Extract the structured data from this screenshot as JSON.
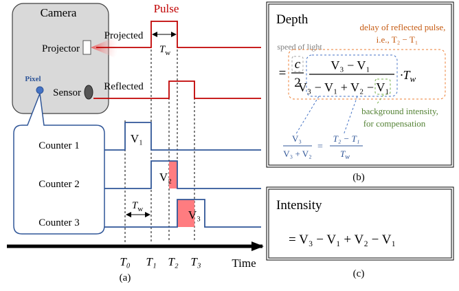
{
  "panel_a": {
    "camera": "Camera",
    "pulse": "Pulse",
    "projected": "Projected",
    "tw_top": {
      "base": "T",
      "sub": "w"
    },
    "projector": "Projector",
    "pixel": "Pixel",
    "sensor": "Sensor",
    "reflected": "Reflected",
    "counters": [
      "Counter 1",
      "Counter 2",
      "Counter 3"
    ],
    "counter_values": [
      "V₁",
      "V₂",
      "V₃"
    ],
    "tw_counter": {
      "base": "T",
      "sub": "w"
    },
    "times": [
      "T₀",
      "T₁",
      "T₂",
      "T₃"
    ],
    "time_axis": "Time",
    "caption": "(a)"
  },
  "panel_b": {
    "title": "Depth",
    "delay_note": [
      "delay of reflected pulse,",
      "i.e., T₂ − T₁"
    ],
    "speed_note": "speed of light",
    "formula": {
      "equals": "=",
      "c": "c",
      "two": "2",
      "numerator": "V₃ − V₁",
      "denominator_main": "V₃ − V₁ + V₂ −",
      "denominator_last": "V₁",
      "factor": {
        "base": "·T",
        "sub": "w"
      }
    },
    "background_note": [
      "background intensity,",
      "for compensation"
    ],
    "ratio": {
      "numerator": "V₃",
      "denominator": "V₃ + V₂",
      "equals": "=",
      "rhs_numerator": "T₂ − T₁",
      "rhs_denominator": {
        "base": "T",
        "sub": "w"
      }
    },
    "caption": "(b)"
  },
  "panel_c": {
    "title": "Intensity",
    "formula": "= V₃ − V₁ + V₂ − V₁",
    "caption": "(c)"
  }
}
